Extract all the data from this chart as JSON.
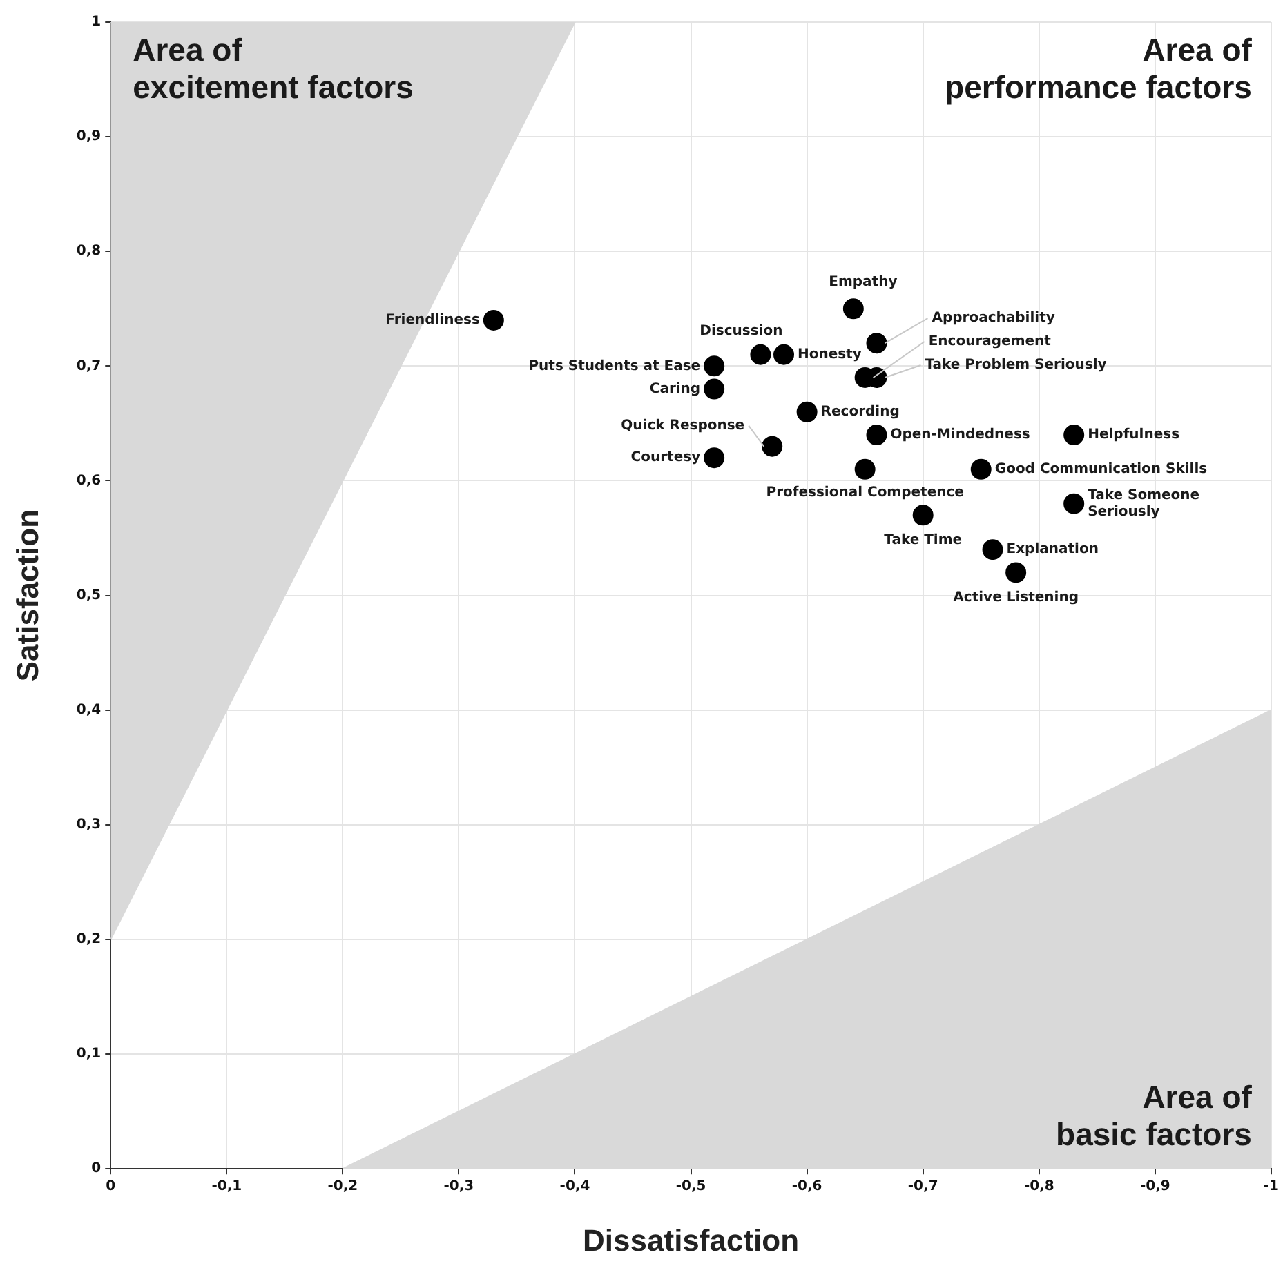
{
  "chart_data": {
    "type": "scatter",
    "xlabel": "Dissatisfaction",
    "ylabel": "Satisfaction",
    "xlim": [
      0,
      -1
    ],
    "ylim": [
      0,
      1
    ],
    "xticks": [
      0,
      {
        "value": -0.1,
        "label": "-0,1"
      },
      {
        "value": -0.2,
        "label": "-0,2"
      },
      {
        "value": -0.3,
        "label": "-0,3"
      },
      {
        "value": -0.4,
        "label": "-0,4"
      },
      {
        "value": -0.5,
        "label": "-0,5"
      },
      {
        "value": -0.6,
        "label": "-0,6"
      },
      {
        "value": -0.7,
        "label": "-0,7"
      },
      {
        "value": -0.8,
        "label": "-0,8"
      },
      {
        "value": -0.9,
        "label": "-0,9"
      },
      -1
    ],
    "yticks": [
      0,
      {
        "value": 0.1,
        "label": "0,1"
      },
      {
        "value": 0.2,
        "label": "0,2"
      },
      {
        "value": 0.3,
        "label": "0,3"
      },
      {
        "value": 0.4,
        "label": "0,4"
      },
      {
        "value": 0.5,
        "label": "0,5"
      },
      {
        "value": 0.6,
        "label": "0,6"
      },
      {
        "value": 0.7,
        "label": "0,7"
      },
      {
        "value": 0.8,
        "label": "0,8"
      },
      {
        "value": 0.9,
        "label": "0,9"
      },
      1
    ],
    "grid": true,
    "legend": false,
    "series": [
      {
        "type": "area",
        "color": "#d9d9d9",
        "x": [
          0,
          -0.4,
          0
        ],
        "values": [
          0.2,
          1,
          1
        ]
      },
      {
        "type": "area",
        "color": "#d9d9d9",
        "x": [
          -0.2,
          -1,
          -1
        ],
        "values": [
          0,
          0.4,
          0
        ]
      },
      {
        "marker": "circle",
        "color": "#000000",
        "x": [
          -0.33,
          -0.64,
          -0.56,
          -0.58,
          -0.66,
          -0.65,
          -0.66,
          -0.52,
          -0.52,
          -0.6,
          -0.66,
          -0.83,
          -0.57,
          -0.52,
          -0.65,
          -0.75,
          -0.83,
          -0.7,
          -0.76,
          -0.78
        ],
        "values": [
          0.74,
          0.75,
          0.71,
          0.71,
          0.72,
          0.69,
          0.69,
          0.7,
          0.68,
          0.66,
          0.64,
          0.64,
          0.63,
          0.62,
          0.61,
          0.61,
          0.58,
          0.57,
          0.54,
          0.52
        ]
      }
    ],
    "annotations": [
      "Area of\nexcitement factors",
      "Area of\nperformance factors",
      "Area of\nbasic factors",
      {
        "text": "Friendliness",
        "x": -0.33,
        "y": 0.74
      },
      {
        "text": "Empathy",
        "x": -0.64,
        "y": 0.75
      },
      {
        "text": "Discussion",
        "x": -0.56,
        "y": 0.71
      },
      {
        "text": "Honesty",
        "x": -0.58,
        "y": 0.71
      },
      {
        "text": "Approachability",
        "x": -0.66,
        "y": 0.72
      },
      {
        "text": "Encouragement",
        "x": -0.65,
        "y": 0.69
      },
      {
        "text": "Take Problem Seriously",
        "x": -0.66,
        "y": 0.69
      },
      {
        "text": "Puts Students at Ease",
        "x": -0.52,
        "y": 0.7
      },
      {
        "text": "Caring",
        "x": -0.52,
        "y": 0.68
      },
      {
        "text": "Recording",
        "x": -0.6,
        "y": 0.66
      },
      {
        "text": "Open-Mindedness",
        "x": -0.66,
        "y": 0.64
      },
      {
        "text": "Helpfulness",
        "x": -0.83,
        "y": 0.64
      },
      {
        "text": "Quick Response",
        "x": -0.57,
        "y": 0.63
      },
      {
        "text": "Courtesy",
        "x": -0.52,
        "y": 0.62
      },
      {
        "text": "Professional Competence",
        "x": -0.65,
        "y": 0.61
      },
      {
        "text": "Good Communication Skills",
        "x": -0.75,
        "y": 0.61
      },
      {
        "text": "Take Someone\nSeriously",
        "x": -0.83,
        "y": 0.58
      },
      {
        "text": "Take Time",
        "x": -0.7,
        "y": 0.57
      },
      {
        "text": "Explanation",
        "x": -0.76,
        "y": 0.54
      },
      {
        "text": "Active Listening",
        "x": -0.78,
        "y": 0.52
      }
    ]
  }
}
